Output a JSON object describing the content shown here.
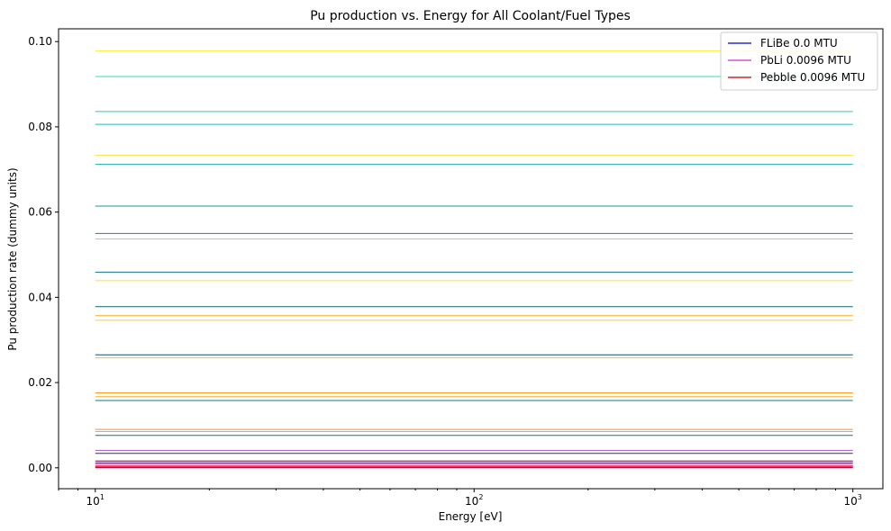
{
  "chart_data": {
    "type": "line",
    "title": "Pu production vs. Energy for All Coolant/Fuel Types",
    "xlabel": "Energy [eV]",
    "ylabel": "Pu production rate (dummy units)",
    "xscale": "log",
    "xlim": [
      8,
      1200
    ],
    "ylim": [
      -0.0049,
      0.103
    ],
    "x": [
      10,
      1000
    ],
    "x_ticks": [
      {
        "value": 10,
        "base": "10",
        "exp": "1"
      },
      {
        "value": 100,
        "base": "10",
        "exp": "2"
      },
      {
        "value": 1000,
        "base": "10",
        "exp": "3"
      }
    ],
    "y_ticks": [
      {
        "value": 0.0,
        "label": "0.00"
      },
      {
        "value": 0.02,
        "label": "0.02"
      },
      {
        "value": 0.04,
        "label": "0.04"
      },
      {
        "value": 0.06,
        "label": "0.06"
      },
      {
        "value": 0.08,
        "label": "0.08"
      },
      {
        "value": 0.1,
        "label": "0.10"
      }
    ],
    "grid": false,
    "legend_position": "top-right",
    "legend": [
      {
        "label": "FLiBe 0.0 MTU",
        "color": "#0000cc"
      },
      {
        "label": "PbLi 0.0096 MTU",
        "color": "#cc33cc"
      },
      {
        "label": "Pebble 0.0096 MTU",
        "color": "#cc0000"
      }
    ],
    "lines": [
      {
        "value": 0.0978,
        "color": "#ffee33"
      },
      {
        "value": 0.0918,
        "color": "#33ddaa"
      },
      {
        "value": 0.0836,
        "color": "#22ccbb"
      },
      {
        "value": 0.0806,
        "color": "#22bbbb"
      },
      {
        "value": 0.0733,
        "color": "#ffdd44"
      },
      {
        "value": 0.0712,
        "color": "#22aaaa"
      },
      {
        "value": 0.0614,
        "color": "#119999"
      },
      {
        "value": 0.055,
        "color": "#118888"
      },
      {
        "value": 0.0537,
        "color": "#ffbb33"
      },
      {
        "value": 0.0459,
        "color": "#117788"
      },
      {
        "value": 0.0439,
        "color": "#ffdd33"
      },
      {
        "value": 0.0378,
        "color": "#116677"
      },
      {
        "value": 0.0357,
        "color": "#ffaa22"
      },
      {
        "value": 0.0346,
        "color": "#ffcc33"
      },
      {
        "value": 0.0265,
        "color": "#115566"
      },
      {
        "value": 0.0258,
        "color": "#ffbb22"
      },
      {
        "value": 0.0176,
        "color": "#ff9922"
      },
      {
        "value": 0.0167,
        "color": "#ffaa33"
      },
      {
        "value": 0.0158,
        "color": "#117777"
      },
      {
        "value": 0.009,
        "color": "#ff8833"
      },
      {
        "value": 0.0085,
        "color": "#ff9955"
      },
      {
        "value": 0.0076,
        "color": "#117766"
      },
      {
        "value": 0.0041,
        "color": "#aa55cc"
      },
      {
        "value": 0.0034,
        "color": "#223388"
      },
      {
        "value": 0.0016,
        "color": "#660033"
      },
      {
        "value": 0.0011,
        "color": "#220066"
      },
      {
        "value": 0.0006,
        "color": "#ff0055"
      },
      {
        "value": 0.0003,
        "color": "#ff1144"
      },
      {
        "value": 0.0001,
        "color": "#ee0044"
      },
      {
        "value": 0.0,
        "color": "#cc0033"
      }
    ]
  }
}
